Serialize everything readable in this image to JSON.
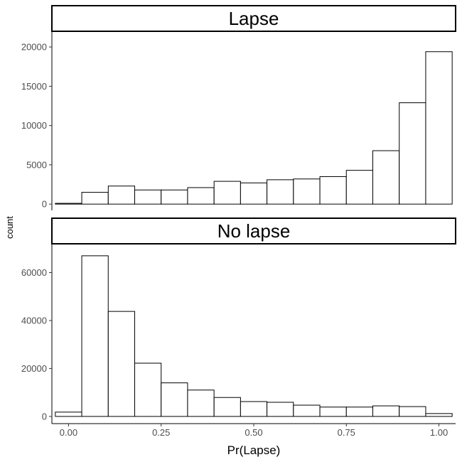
{
  "chart_data": {
    "type": "bar",
    "subtype": "faceted-histogram",
    "xlabel": "Pr(Lapse)",
    "ylabel": "count",
    "x_ticks": [
      0.0,
      0.25,
      0.5,
      0.75,
      1.0
    ],
    "x_tick_labels": [
      "0.00",
      "0.25",
      "0.50",
      "0.75",
      "1.00"
    ],
    "xlim": [
      -0.045,
      1.045
    ],
    "bin_width": 0.0714,
    "bin_centers": [
      0.0,
      0.0714,
      0.1429,
      0.2143,
      0.2857,
      0.3571,
      0.4286,
      0.5,
      0.5714,
      0.6429,
      0.7143,
      0.7857,
      0.8571,
      0.9286,
      1.0
    ],
    "grid": false,
    "legend": "none",
    "facets": [
      {
        "label": "Lapse",
        "ylim": [
          -800,
          22000
        ],
        "y_ticks": [
          0,
          5000,
          10000,
          15000,
          20000
        ],
        "y_tick_labels": [
          "0",
          "5000",
          "10000",
          "15000",
          "20000"
        ],
        "values": [
          100,
          1500,
          2300,
          1800,
          1800,
          2100,
          2900,
          2700,
          3100,
          3200,
          3500,
          4300,
          6800,
          12900,
          19400
        ]
      },
      {
        "label": "No lapse",
        "ylim": [
          -3000,
          72000
        ],
        "y_ticks": [
          0,
          20000,
          40000,
          60000
        ],
        "y_tick_labels": [
          "0",
          "20000",
          "40000",
          "60000"
        ],
        "values": [
          1800,
          67000,
          43800,
          22200,
          14000,
          11000,
          7900,
          6200,
          5900,
          4700,
          3900,
          3900,
          4400,
          4100,
          1200
        ]
      }
    ]
  }
}
